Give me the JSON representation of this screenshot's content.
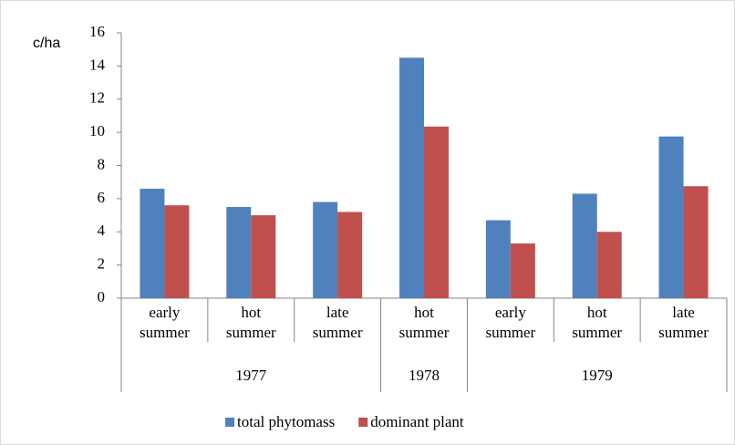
{
  "chart_data": {
    "type": "bar",
    "y_label": "c/ha",
    "categories": [
      "early summer",
      "hot summer",
      "late summer",
      "hot summer",
      "early summer",
      "hot summer",
      "late summer"
    ],
    "groups": [
      {
        "label": "1977",
        "count": 3
      },
      {
        "label": "1978",
        "count": 1
      },
      {
        "label": "1979",
        "count": 3
      }
    ],
    "series": [
      {
        "name": "total phytomass",
        "color": "#4f81bd",
        "values": [
          6.6,
          5.5,
          5.8,
          14.5,
          4.7,
          6.3,
          9.75
        ]
      },
      {
        "name": "dominant plant",
        "color": "#c0504d",
        "values": [
          5.6,
          5.0,
          5.2,
          10.35,
          3.3,
          4.0,
          6.75
        ]
      }
    ],
    "ylim": [
      0,
      16
    ],
    "yticks": [
      0,
      2,
      4,
      6,
      8,
      10,
      12,
      14,
      16
    ],
    "grid": false,
    "legend": "bottom"
  }
}
